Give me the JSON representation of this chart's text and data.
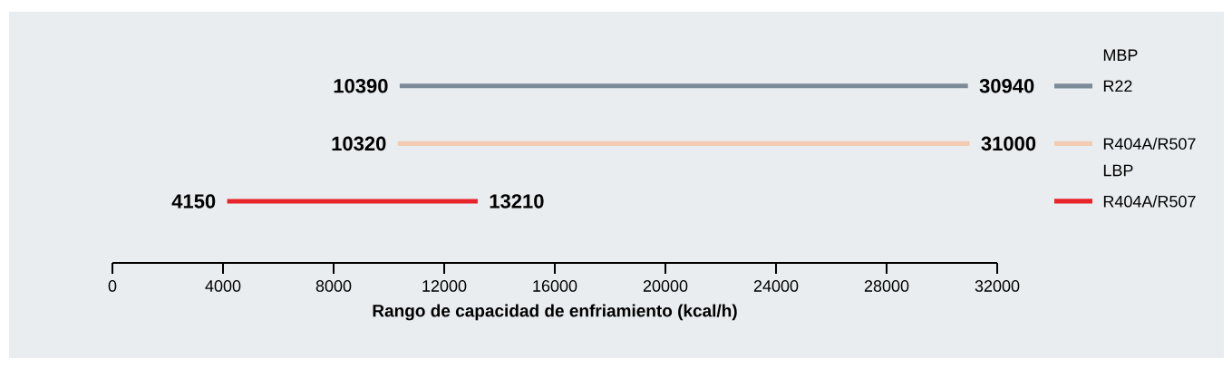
{
  "chart_data": {
    "type": "bar",
    "orientation": "horizontal",
    "categories": [
      null,
      null,
      null
    ],
    "base": [
      10390,
      10320,
      4150
    ],
    "values": [
      20550,
      20680,
      9060
    ],
    "colors": [
      "#7b8b97",
      "#f2cbb2",
      "#e8242b"
    ],
    "xlim": [
      0,
      32000
    ],
    "xticks": [
      0,
      4000,
      8000,
      12000,
      16000,
      20000,
      24000,
      28000,
      32000
    ],
    "xlabel": "Rango de capacidad de enfriamiento (kcal/h)",
    "annotations": [
      "MBP",
      "R22",
      "R404A/R507",
      "LBP",
      "R404A/R507",
      {
        "text": "10390",
        "x": 10390
      },
      {
        "text": "30940",
        "x": 30940
      },
      {
        "text": "10320",
        "x": 10320
      },
      {
        "text": "31000",
        "x": 31000
      },
      {
        "text": "4150",
        "x": 4150
      },
      {
        "text": "13210",
        "x": 13210
      }
    ]
  }
}
